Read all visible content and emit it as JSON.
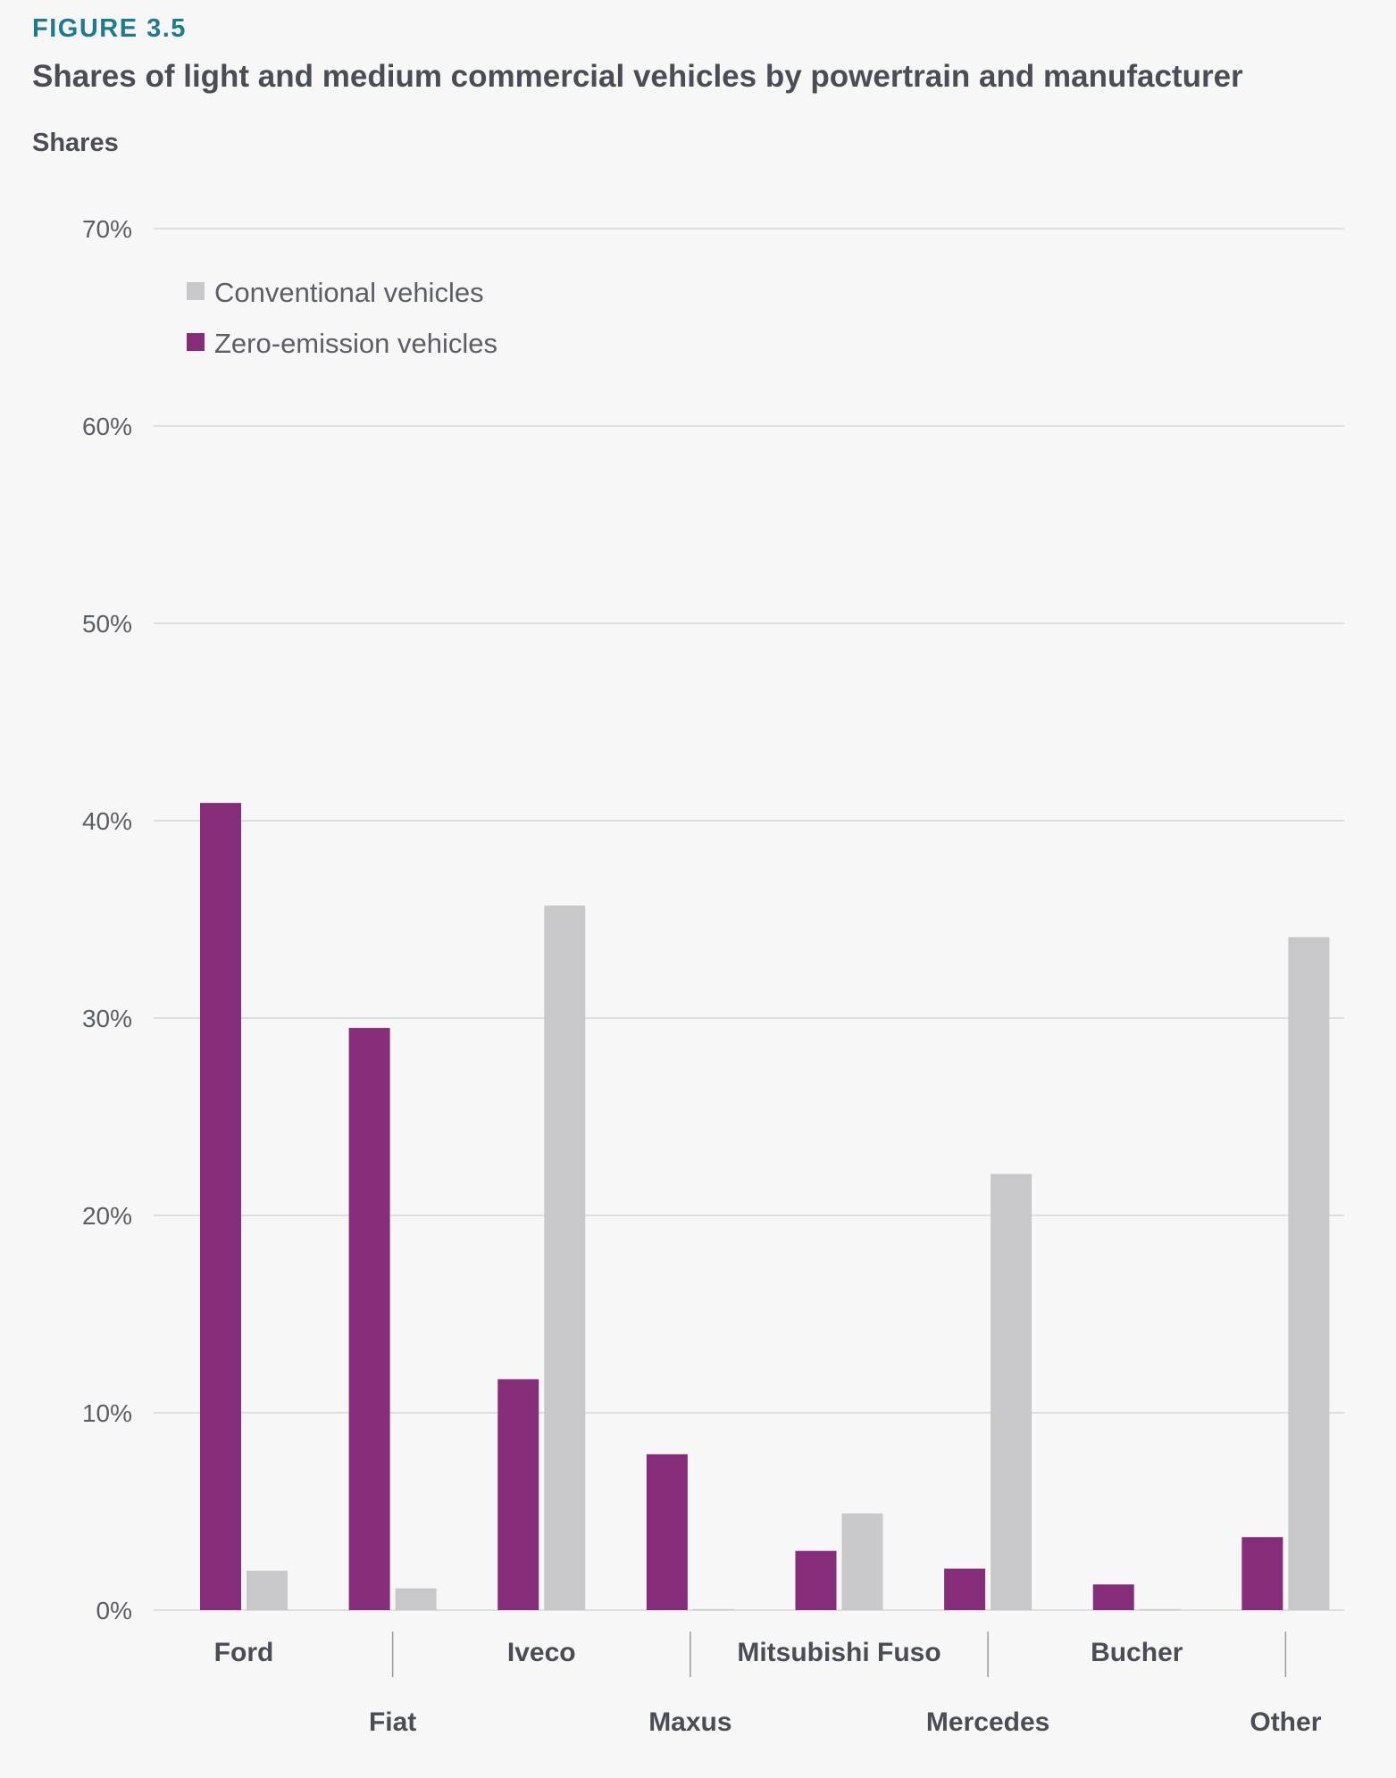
{
  "figure": {
    "label": "FIGURE 3.5",
    "title": "Shares of light and medium commercial vehicles by powertrain and manufacturer",
    "y_axis_title": "Shares"
  },
  "colors": {
    "zero_emission": "#852d79",
    "conventional": "#c8c8ca",
    "gridline": "#d6d6d8",
    "separator": "#9a9a9c"
  },
  "chart_data": {
    "type": "bar",
    "ylabel": "Shares",
    "ylim": [
      0,
      70
    ],
    "yticks": [
      0,
      10,
      20,
      30,
      40,
      50,
      60,
      70
    ],
    "ytick_labels": [
      "0%",
      "10%",
      "20%",
      "30%",
      "40%",
      "50%",
      "60%",
      "70%"
    ],
    "categories": [
      "Ford",
      "Fiat",
      "Iveco",
      "Maxus",
      "Mitsubishi Fuso",
      "Mercedes",
      "Bucher",
      "Other"
    ],
    "series": [
      {
        "name": "Zero-emission vehicles",
        "values": [
          40.9,
          29.5,
          11.7,
          7.9,
          3.0,
          2.1,
          1.3,
          3.7
        ]
      },
      {
        "name": "Conventional vehicles",
        "values": [
          2.0,
          1.1,
          35.7,
          0.05,
          4.9,
          22.1,
          0.05,
          34.1
        ]
      }
    ],
    "legend": {
      "placement": "top-left",
      "entries": [
        "Conventional vehicles",
        "Zero-emission vehicles"
      ]
    },
    "grid": true
  }
}
